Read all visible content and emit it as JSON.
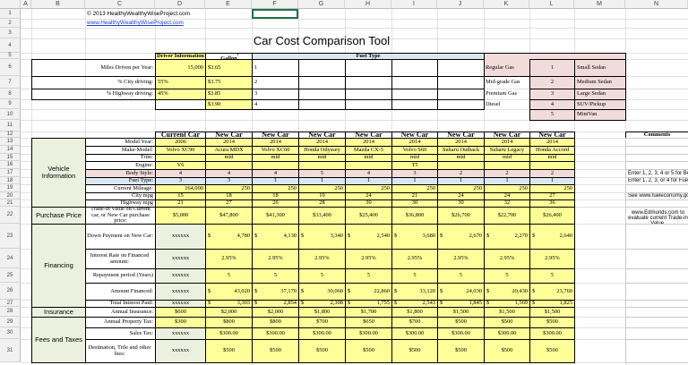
{
  "colors": {
    "yellow": "#ffff99",
    "pink": "#f2dcdb",
    "blue": "#dce6f1",
    "green": "#ebf1de",
    "grid": "#c9c9c9",
    "selected": "#217346"
  },
  "columns": [
    "A",
    "B",
    "C",
    "D",
    "E",
    "F",
    "G",
    "H",
    "I",
    "J",
    "K",
    "L",
    "M",
    "N"
  ],
  "rows": [
    "1",
    "2",
    "3",
    "4",
    "5",
    "6",
    "7",
    "8",
    "9",
    "10",
    "11",
    "12",
    "13",
    "14",
    "15",
    "16",
    "17",
    "18",
    "19",
    "20",
    "21",
    "22",
    "23",
    "24",
    "25",
    "26",
    "27",
    "28",
    "29",
    "30",
    "31"
  ],
  "header": {
    "copyright": "© 2013 HealthyWealthyWiseProject.com",
    "link": "www.HealthyWealthyWiseProject.com",
    "title": "Car Cost Comparison Tool",
    "driver_information": "Driver Information",
    "fuel_cost_per_gallon": "Fuel Cost per Gallon",
    "fuel_type": "Fuel Type",
    "body_style": "Body Style"
  },
  "driver": {
    "miles_label": "Miles Driven per Year:",
    "miles_value": "15,000",
    "city_label": "% City driving:",
    "city_value": "55%",
    "highway_label": "% Highway driving:",
    "highway_value": "45%"
  },
  "fuel_costs": [
    "$3.65",
    "$3.75",
    "$3.85",
    "$3.90"
  ],
  "fuel_numbers": [
    "1",
    "2",
    "3",
    "4"
  ],
  "fuel_types": [
    "Regular Gas",
    "Mid-grade Gas",
    "Premium Gas",
    "Diesel"
  ],
  "body_numbers": [
    "1",
    "2",
    "3",
    "4",
    "5"
  ],
  "body_styles": [
    "Small Sedan",
    "Medium Sedan",
    "Large Sedan",
    "SUV/Pickup",
    "MiniVan"
  ],
  "cars": {
    "headers": [
      "Current Car",
      "New Car",
      "New Car",
      "New Car",
      "New Car",
      "New Car",
      "New Car",
      "New Car",
      "New Car"
    ],
    "comments_header": "Comments",
    "row_labels": [
      "Model Year:",
      "Make-Model:",
      "Trim:",
      "Engine:",
      "Body Style:",
      "Fuel Type:",
      "Current Mileage:",
      "City mpg",
      "Highway mpg"
    ],
    "model_year": [
      "2006",
      "2014",
      "2014",
      "2014",
      "2014",
      "2014",
      "2014",
      "2014",
      "2014"
    ],
    "make_model": [
      "Volvo XC90",
      "Acura MDX",
      "Volvo XC60",
      "Honda Odyssey",
      "Mazda CX-5",
      "Volvo S60",
      "Subaru Outback",
      "Subaru Legacy",
      "Honda Accord"
    ],
    "trim": [
      "",
      "mid",
      "mid",
      "mid",
      "mid",
      "mid",
      "mid",
      "mid",
      "mid"
    ],
    "engine": [
      "V6",
      "",
      "",
      "",
      "",
      "T5",
      "",
      "",
      ""
    ],
    "body_style": [
      "4",
      "4",
      "4",
      "5",
      "4",
      "3",
      "2",
      "2",
      "2"
    ],
    "fuel_type": [
      "3",
      "3",
      "1",
      "1",
      "1",
      "1",
      "1",
      "1",
      "1"
    ],
    "mileage": [
      "164,000",
      "250",
      "250",
      "250",
      "250",
      "250",
      "250",
      "250",
      "250"
    ],
    "city_mpg": [
      "15",
      "18",
      "18",
      "19",
      "24",
      "21",
      "24",
      "24",
      "27"
    ],
    "highway_mpg": [
      "21",
      "27",
      "26",
      "28",
      "30",
      "30",
      "30",
      "32",
      "36"
    ]
  },
  "sections": {
    "vehicle": "Vehicle Information",
    "purchase": "Purchase Price",
    "financing": "Financing",
    "insurance": "Insurance",
    "fees": "Fees and Taxes"
  },
  "purchase": {
    "label": "Trade-in Value on Current car, or New Car purchase price:",
    "values": [
      "$5,000",
      "$47,800",
      "$41,300",
      "$33,400",
      "$25,400",
      "$36,800",
      "$26,700",
      "$22,700",
      "$26,400"
    ]
  },
  "financing": {
    "down_label": "Down Payment on New Car:",
    "down_values": [
      "4,780",
      "4,130",
      "3,340",
      "2,540",
      "3,680",
      "2,670",
      "2,270",
      "2,640"
    ],
    "rate_label": "Interest Rate on Financed amount:",
    "rate_values": [
      "2.95%",
      "2.95%",
      "2.95%",
      "2.95%",
      "2.95%",
      "2.95%",
      "2.95%",
      "2.95%"
    ],
    "period_label": "Repayment period (Years)",
    "period_values": [
      "5",
      "5",
      "5",
      "5",
      "5",
      "5",
      "5",
      "5"
    ],
    "amount_label": "Amount Financed:",
    "amount_values": [
      "43,020",
      "37,170",
      "30,060",
      "22,860",
      "33,120",
      "24,030",
      "20,430",
      "23,760"
    ],
    "interest_label": "Total Interest Paid:",
    "interest_values": [
      "3,303",
      "2,854",
      "2,308",
      "1,755",
      "2,543",
      "1,845",
      "1,569",
      "1,825"
    ],
    "placeholder": "xxxxxx",
    "currency": "$"
  },
  "insurance": {
    "label": "Annual Insurance:",
    "values": [
      "$600",
      "$2,000",
      "$2,000",
      "$1,800",
      "$1,700",
      "$1,800",
      "$1,500",
      "$1,500",
      "$1,500"
    ]
  },
  "fees": {
    "property_label": "Annual Property Tax:",
    "property_values": [
      "$300",
      "$800",
      "$800",
      "$700",
      "$650",
      "$700",
      "$500",
      "$500",
      "$500"
    ],
    "sales_label": "Sales Tax:",
    "sales_values": [
      "xxxxxx",
      "$300.00",
      "$300.00",
      "$300.00",
      "$300.00",
      "$300.00",
      "$300.00",
      "$300.00",
      "$300.00"
    ],
    "dest_label": "Destination, Title and other fees:",
    "dest_values": [
      "xxxxxx",
      "$500",
      "$500",
      "$500",
      "$500",
      "$500",
      "$500",
      "$500",
      "$500"
    ]
  },
  "comments": {
    "body_style": "Enter 1, 2, 3, 4 or 5 for Body Style",
    "fuel_type": "Enter 1, 2, 3, or 4 for Fuel Type",
    "mpg": "See www.fueleconomy.gov for mpg",
    "purchase": "Recommend www.Edmunds.com to evaluate current Trade-in Value."
  }
}
